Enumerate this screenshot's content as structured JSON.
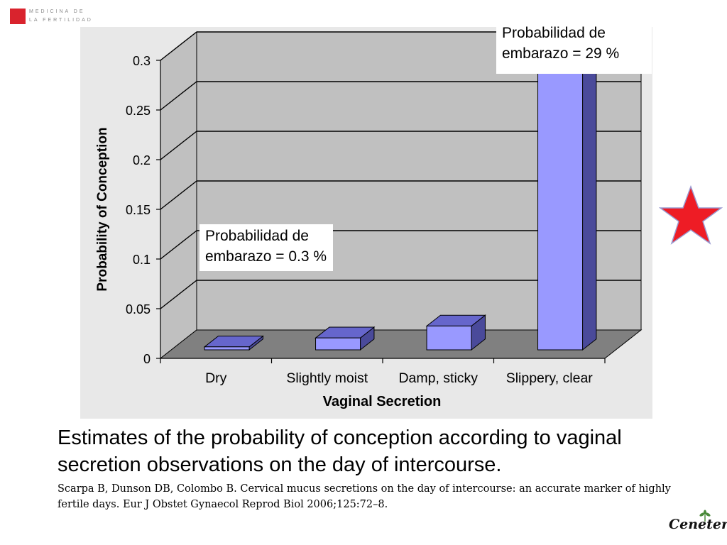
{
  "logo": {
    "line1": "MEDICINA DE",
    "line2": "LA FERTILIDAD",
    "brand_color": "#d9232d"
  },
  "chart_data": {
    "type": "bar",
    "title": "",
    "xlabel": "Vaginal Secretion",
    "ylabel": "Probability of Conception",
    "categories": [
      "Dry",
      "Slightly moist",
      "Damp, sticky",
      "Slippery, clear"
    ],
    "values": [
      0.003,
      0.012,
      0.024,
      0.29
    ],
    "ylim": [
      0,
      0.3
    ],
    "yticks": [
      "0",
      "0.05",
      "0.1",
      "0.15",
      "0.2",
      "0.25",
      "0.3"
    ],
    "grid": true,
    "legend": "none",
    "colors": {
      "bar_front": "#9999ff",
      "bar_top": "#6666cc",
      "bar_side": "#4a4a9a",
      "wall": "#c0c0c0",
      "floor": "#808080",
      "plot_bg": "#e8e8e8"
    }
  },
  "annotations": {
    "high": "Probabilidad de embarazo = 29 %",
    "low": "Probabilidad de embarazo = 0.3 %"
  },
  "caption": "Estimates of the probability of conception according to vaginal secretion observations on the day of intercourse.",
  "reference": "Scarpa B, Dunson DB, Colombo B. Cervical mucus secretions on the day of intercourse: an accurate marker of highly fertile days. Eur J Obstet Gynaecol Reprod Biol 2006;125:72–8.",
  "brand": {
    "name": "Ceneter",
    "leaf_color": "#4a8a3a"
  },
  "star": {
    "color": "#ee1c25",
    "icon": "star-icon"
  }
}
